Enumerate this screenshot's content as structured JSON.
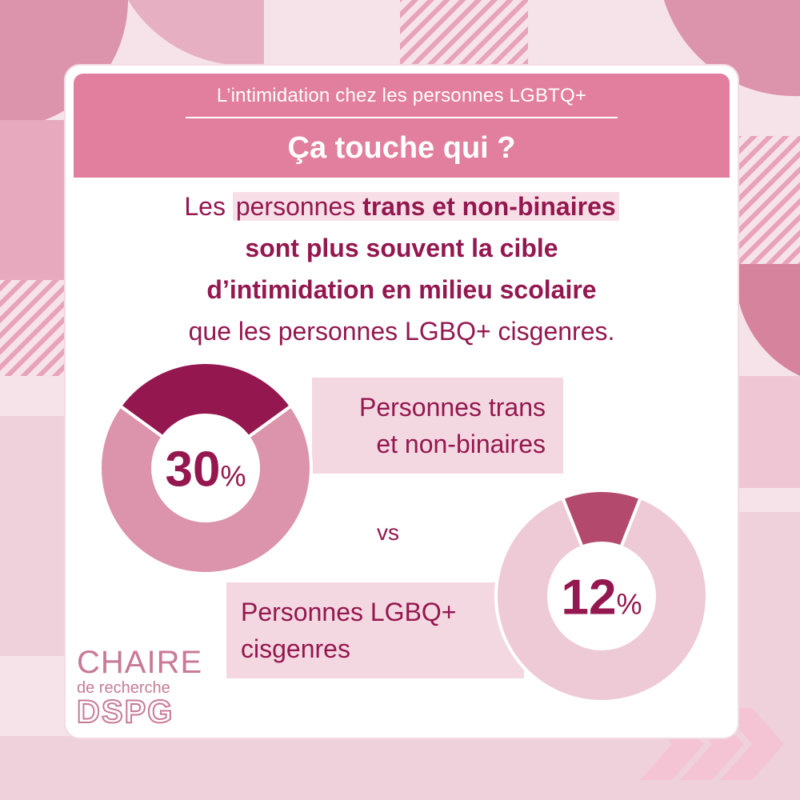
{
  "header": {
    "kicker": "L’intimidation chez les personnes LGBTQ+",
    "title": "Ça touche qui ?"
  },
  "statement": {
    "line1_pre": "Les ",
    "line1_hl": "personnes ",
    "line1_bold": "trans et non-binaires",
    "line2": "sont plus souvent la cible",
    "line3": "d’intimidation en milieu scolaire",
    "line4": "que les personnes LGBQ+ cisgenres."
  },
  "chart_data": {
    "type": "pie",
    "variant": "donut",
    "series": [
      {
        "label_line1": "Personnes trans",
        "label_line2": "et non-binaires",
        "value": 30,
        "value_text": "30",
        "unit": "%",
        "color_value": "#94174f",
        "color_rest": "#dc93ac"
      },
      {
        "label_line1": "Personnes LGBQ+",
        "label_line2": "cisgenres",
        "value": 12,
        "value_text": "12",
        "unit": "%",
        "color_value": "#b34a6d",
        "color_rest": "#eecad6"
      }
    ],
    "comparison": "vs"
  },
  "logo": {
    "top": "CHAIRE",
    "mid": "de recherche",
    "bot": "DSPG"
  },
  "colors": {
    "accent": "#94174f",
    "header": "#e27f9e",
    "background": "#f6e3ea"
  }
}
